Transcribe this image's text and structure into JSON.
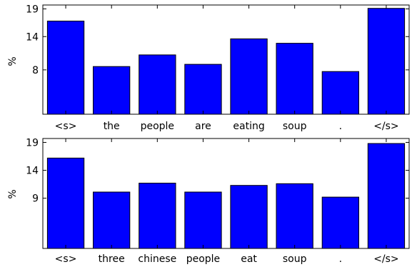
{
  "chart_data": [
    {
      "type": "bar",
      "categories": [
        "<s>",
        "the",
        "people",
        "are",
        "eating",
        "soup",
        ".",
        "</s>"
      ],
      "values": [
        16.8,
        8.6,
        10.7,
        9.0,
        13.6,
        12.8,
        7.7,
        19.1
      ],
      "ylabel": "%",
      "ylim": [
        0,
        19.7
      ],
      "yticks": [
        "19",
        "14",
        "8"
      ],
      "ytick_values": [
        19,
        14,
        8
      ],
      "bar_color": "#0000ff",
      "grid": false
    },
    {
      "type": "bar",
      "categories": [
        "<s>",
        "three",
        "chinese",
        "people",
        "eat",
        "soup",
        ".",
        "</s>"
      ],
      "values": [
        16.2,
        10.1,
        11.7,
        10.1,
        11.3,
        11.6,
        9.2,
        18.8
      ],
      "ylabel": "%",
      "ylim": [
        0,
        19.7
      ],
      "yticks": [
        "19",
        "14",
        "9"
      ],
      "ytick_values": [
        19,
        14,
        9
      ],
      "bar_color": "#0000ff",
      "grid": false
    }
  ]
}
